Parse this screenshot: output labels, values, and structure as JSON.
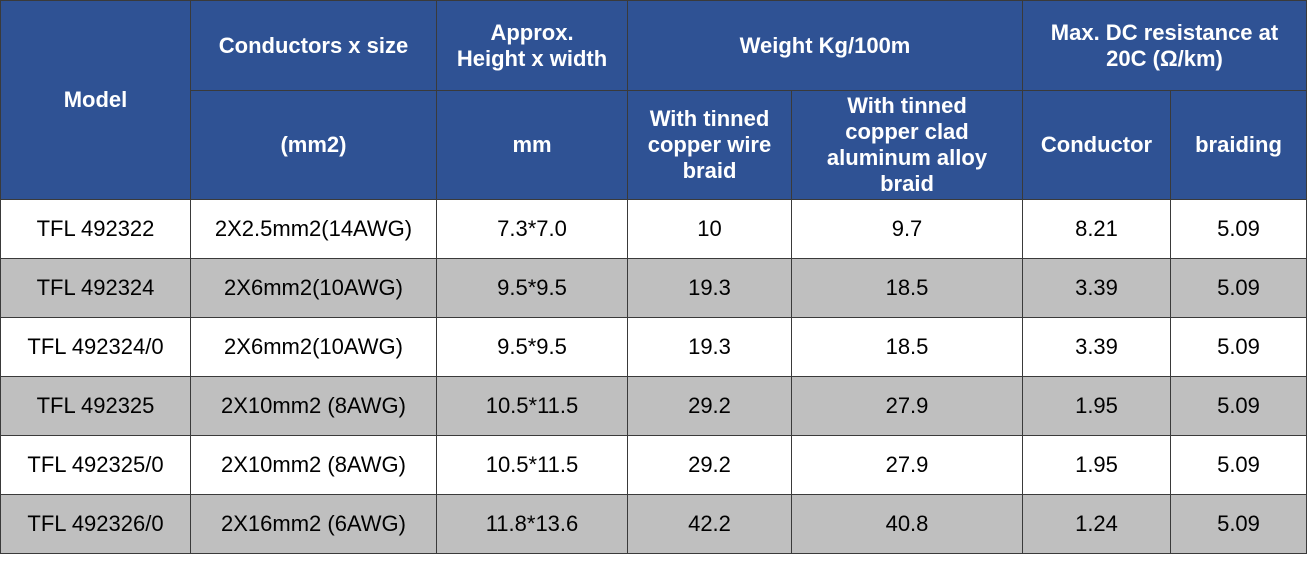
{
  "header": {
    "model": "Model",
    "conductors": "Conductors x size",
    "conductors_unit": "(mm2)",
    "approx": "Approx.\nHeight x width",
    "approx_unit": "mm",
    "weight": "Weight Kg/100m",
    "weight_copper": "With tinned copper wire braid",
    "weight_aluminum": "With tinned copper clad aluminum alloy braid",
    "resistance": "Max. DC resistance at 20C (Ω/km)",
    "resistance_conductor": "Conductor",
    "resistance_braiding": "braiding"
  },
  "rows": [
    [
      "TFL 492322",
      "2X2.5mm2(14AWG)",
      "7.3*7.0",
      "10",
      "9.7",
      "8.21",
      "5.09"
    ],
    [
      "TFL 492324",
      "2X6mm2(10AWG)",
      "9.5*9.5",
      "19.3",
      "18.5",
      "3.39",
      "5.09"
    ],
    [
      "TFL 492324/0",
      "2X6mm2(10AWG)",
      "9.5*9.5",
      "19.3",
      "18.5",
      "3.39",
      "5.09"
    ],
    [
      "TFL 492325",
      "2X10mm2 (8AWG)",
      "10.5*11.5",
      "29.2",
      "27.9",
      "1.95",
      "5.09"
    ],
    [
      "TFL 492325/0",
      "2X10mm2 (8AWG)",
      "10.5*11.5",
      "29.2",
      "27.9",
      "1.95",
      "5.09"
    ],
    [
      "TFL 492326/0",
      "2X16mm2 (6AWG)",
      "11.8*13.6",
      "42.2",
      "40.8",
      "1.24",
      "5.09"
    ]
  ],
  "colors": {
    "header_bg": "#2f5294",
    "header_text": "#ffffff",
    "row_alt_bg": "#bfbfbf",
    "border": "#3a3a3a"
  }
}
